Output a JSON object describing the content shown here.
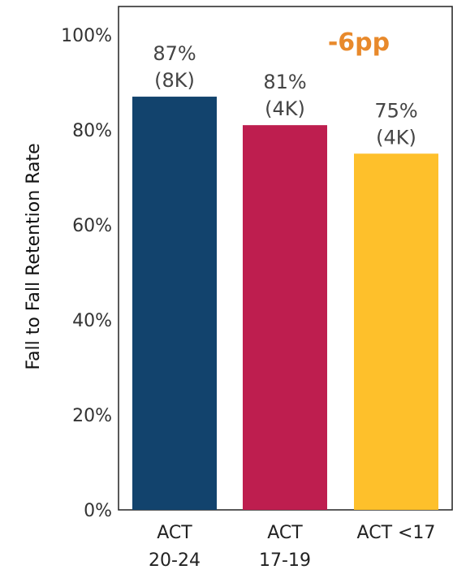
{
  "chart_data": {
    "type": "bar",
    "categories": [
      [
        "ACT",
        "20-24"
      ],
      [
        "ACT",
        "17-19"
      ],
      [
        "ACT <17"
      ]
    ],
    "values": [
      87,
      81,
      75
    ],
    "data_labels": [
      [
        "87%",
        "(8K)"
      ],
      [
        "81%",
        "(4K)"
      ],
      [
        "75%",
        "(4K)"
      ]
    ],
    "bar_colors": [
      "#12436d",
      "#be1e4f",
      "#fec02b"
    ],
    "ylabel": "Fall to Fall Retention Rate",
    "xlabel": "",
    "ylim": [
      0,
      100
    ],
    "yticks": [
      0,
      20,
      40,
      60,
      80,
      100
    ],
    "ytick_labels": [
      "0%",
      "20%",
      "40%",
      "60%",
      "80%",
      "100%"
    ],
    "grid": false,
    "annotation": {
      "text": "-6pp",
      "color": "#e8892b"
    }
  }
}
